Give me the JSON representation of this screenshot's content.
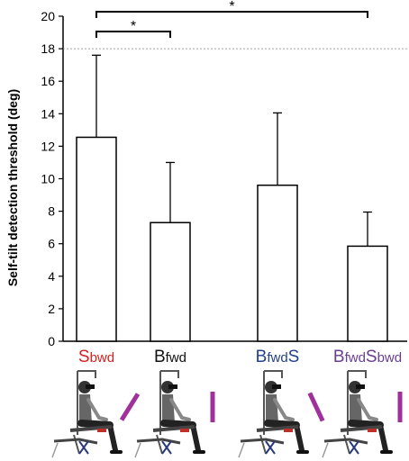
{
  "chart_data": {
    "type": "bar",
    "ylabel": "Self-tilt detection threshold (deg)",
    "ylim": [
      0,
      20
    ],
    "yticks": [
      0,
      2,
      4,
      6,
      8,
      10,
      12,
      14,
      16,
      18,
      20
    ],
    "reference_line": 18,
    "categories": [
      {
        "parts": [
          {
            "text": "S",
            "size": "big"
          },
          {
            "text": "bwd",
            "size": "small"
          }
        ],
        "color": "#d42020"
      },
      {
        "parts": [
          {
            "text": "B",
            "size": "big"
          },
          {
            "text": "fwd",
            "size": "small"
          }
        ],
        "color": "#111111"
      },
      {
        "parts": [
          {
            "text": "B",
            "size": "big"
          },
          {
            "text": "fwd",
            "size": "small"
          },
          {
            "text": "S",
            "size": "big"
          }
        ],
        "color": "#24408e"
      },
      {
        "parts": [
          {
            "text": "B",
            "size": "big"
          },
          {
            "text": "fwd",
            "size": "small"
          },
          {
            "text": "S",
            "size": "big"
          },
          {
            "text": "bwd",
            "size": "small"
          }
        ],
        "color": "#6a3d94"
      }
    ],
    "values": [
      12.55,
      7.3,
      9.6,
      5.85
    ],
    "error_upper": [
      17.6,
      11.0,
      14.05,
      7.95
    ],
    "significance": [
      {
        "from": 0,
        "to": 1,
        "label": "*"
      },
      {
        "from": 0,
        "to": 3,
        "label": "*"
      }
    ]
  },
  "illustration": {
    "description_icons": [
      "tilt-chair-icon",
      "tilt-chair-icon",
      "tilt-chair-icon",
      "tilt-chair-icon"
    ],
    "indicator_color": "#a0309a",
    "indicator_angles_deg": [
      -32,
      0,
      25,
      0
    ]
  }
}
